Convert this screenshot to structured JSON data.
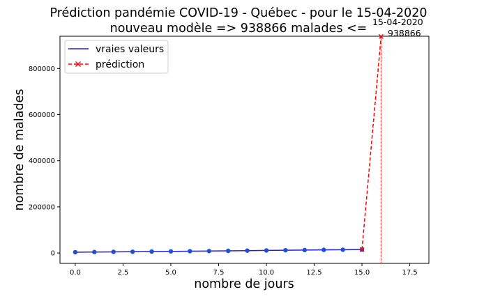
{
  "chart_data": {
    "type": "line",
    "title": "Prédiction pandémie COVID-19 - Québec - pour le 15-04-2020",
    "subtitle": "nouveau modèle => 938866 malades <=",
    "xlabel": "nombre de jours",
    "ylabel": "nombre de malades",
    "xlim": [
      -0.8,
      18.5
    ],
    "ylim": [
      -45000,
      940000
    ],
    "xticks": [
      "0.0",
      "2.5",
      "5.0",
      "7.5",
      "10.0",
      "12.5",
      "15.0",
      "17.5"
    ],
    "yticks": [
      "0",
      "200000",
      "400000",
      "600000",
      "800000"
    ],
    "grid": false,
    "legend_position": "top-left",
    "series": [
      {
        "name": "vraies valeurs",
        "color": "#1f1fd6",
        "marker_color": "#1f4fd0",
        "x": [
          0,
          1,
          2,
          3,
          4,
          5,
          6,
          7,
          8,
          9,
          10,
          11,
          12,
          13,
          14,
          15
        ],
        "y": [
          3500,
          4200,
          4900,
          5500,
          6200,
          7000,
          7800,
          8500,
          9400,
          10300,
          11100,
          11900,
          12800,
          13600,
          14200,
          14900
        ]
      },
      {
        "name": "prédiction",
        "color": "#ff0000",
        "x": [
          15,
          16
        ],
        "y": [
          14900,
          938866
        ]
      }
    ],
    "annotation": {
      "date": "15-04-2020",
      "value": "938866",
      "x": 16,
      "y": 938866
    },
    "vline_x": 16
  }
}
